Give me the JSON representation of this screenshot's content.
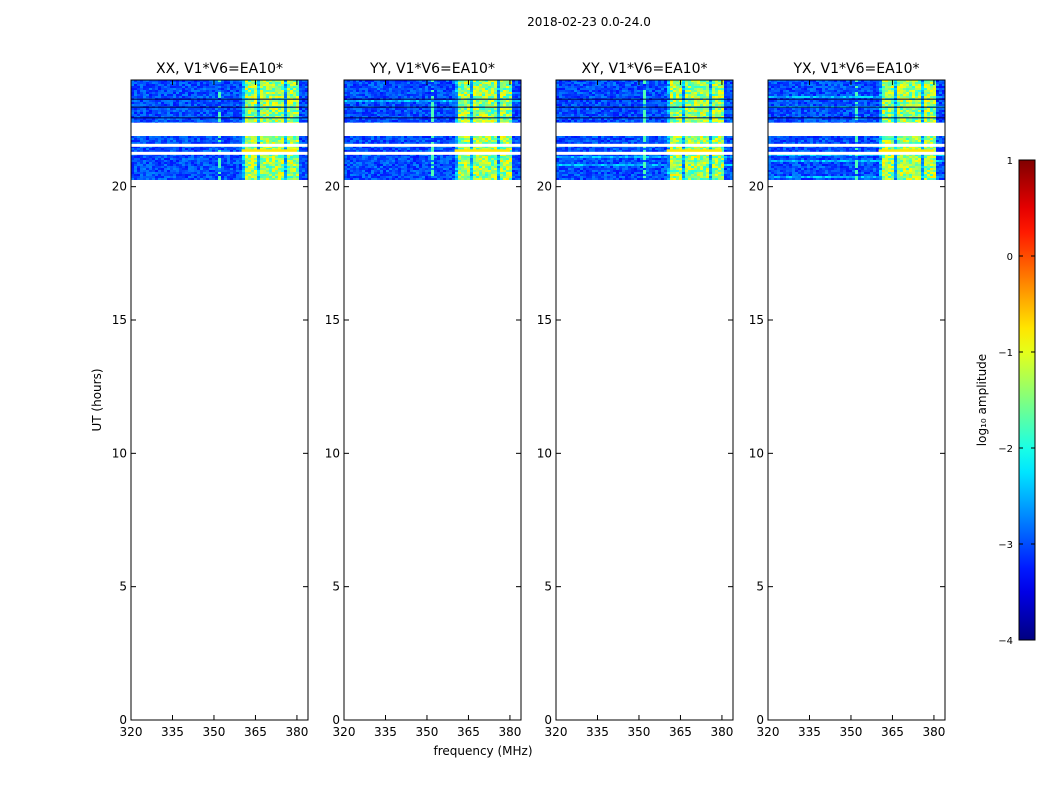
{
  "chart_data": {
    "type": "heatmap",
    "suptitle": "2018-02-23 0.0-24.0",
    "xlabel": "frequency (MHz)",
    "ylabel": "UT (hours)",
    "xlim": [
      320,
      384
    ],
    "ylim": [
      0,
      24
    ],
    "xticks": [
      320,
      335,
      350,
      365,
      380
    ],
    "yticks": [
      0,
      5,
      10,
      15,
      20
    ],
    "data_bands_ut": [
      [
        20.3,
        21.9
      ],
      [
        22.4,
        24.0
      ]
    ],
    "gap_bands_ut": [
      [
        21.9,
        22.4
      ]
    ],
    "white_lines_ut": [
      21.25,
      21.55
    ],
    "bright_band_mhz": [
      360,
      380
    ],
    "rfi_spike_mhz": 351,
    "panels": [
      {
        "title": "XX, V1*V6=EA10*",
        "id": "xx"
      },
      {
        "title": "YY, V1*V6=EA10*",
        "id": "yy"
      },
      {
        "title": "XY, V1*V6=EA10*",
        "id": "xy"
      },
      {
        "title": "YX, V1*V6=EA10*",
        "id": "yx"
      }
    ],
    "colorbar": {
      "label": "log₁₀ amplitude",
      "min": -4,
      "max": 1,
      "ticks": [
        "1",
        "0",
        "−1",
        "−2",
        "−3",
        "−4"
      ],
      "tick_values": [
        1,
        0,
        -1,
        -2,
        -3,
        -4
      ],
      "colormap": "jet"
    }
  }
}
